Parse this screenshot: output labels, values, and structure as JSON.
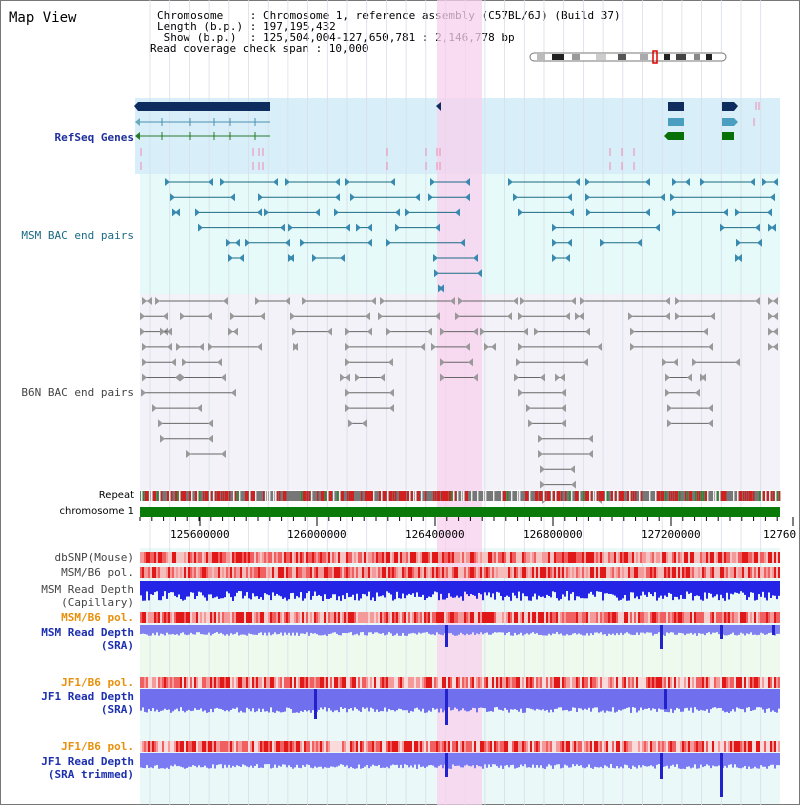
{
  "header": {
    "title": "Map View",
    "chromosome_line": "Chromosome    : Chromosome 1, reference assembly (C57BL/6J) (Build 37)",
    "length_line": "Length (b.p.) : 197,195,432",
    "show_line": " Show (b.p.)  : 125,504,004-127,650,781 : 2,146,778 bp",
    "coverage_line": "Read coverage check span : 10,000"
  },
  "tracks": {
    "refseq": "RefSeq Genes",
    "msm_bac": "MSM BAC end pairs",
    "b6n_bac": "B6N BAC end pairs",
    "repeat": "Repeat",
    "chromosome": "chromosome 1",
    "dbsnp": "dbSNP(Mouse)",
    "msm_b6_pol_1": "MSM/B6 pol.",
    "msm_depth_cap_1": "MSM Read Depth",
    "msm_depth_cap_2": "(Capillary)",
    "msm_b6_pol_2": "MSM/B6 pol.",
    "msm_depth_sra_1": "MSM Read Depth",
    "msm_depth_sra_2": "(SRA)",
    "jf1_b6_pol_1": "JF1/B6 pol.",
    "jf1_depth_sra_1": "JF1 Read Depth",
    "jf1_depth_sra_2": "(SRA)",
    "jf1_b6_pol_2": "JF1/B6 pol.",
    "jf1_depth_trim_1": "JF1 Read Depth",
    "jf1_depth_trim_2": "(SRA trimmed)"
  },
  "axis": {
    "ticks": [
      "125600000",
      "126000000",
      "126400000",
      "126800000",
      "127200000",
      "12760"
    ]
  },
  "colors": {
    "highlight": "#f8d8f0",
    "refseq_bg": "#d8effa",
    "msm_bg": "#e6fafa",
    "b6n_bg": "#f2f2f8",
    "chromosome": "#0a7a0a",
    "depth_blue": "#2020e0",
    "depth_light": "#7a7af0"
  }
}
